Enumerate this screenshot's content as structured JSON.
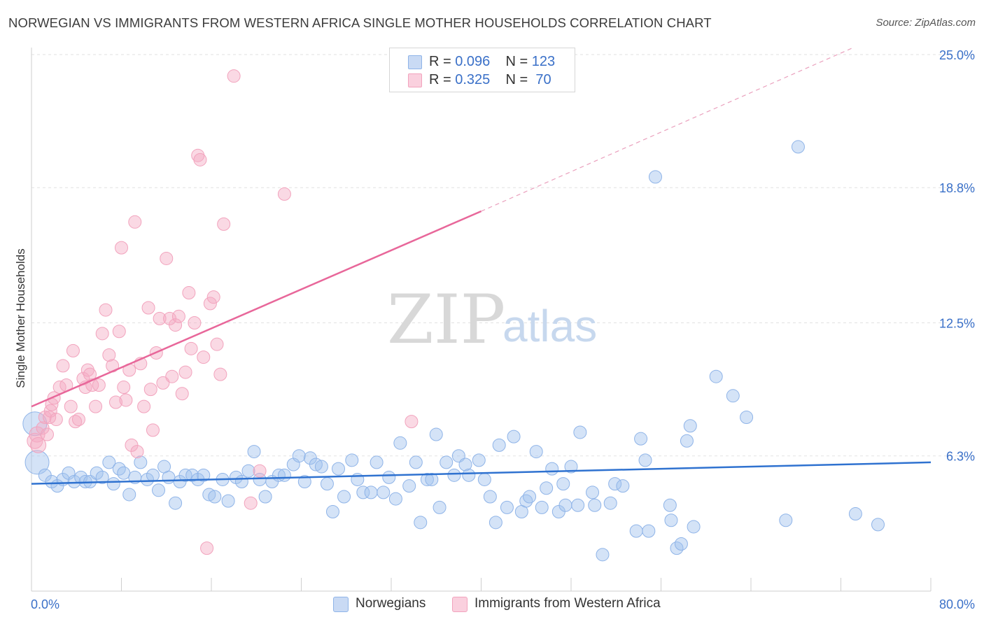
{
  "title": "NORWEGIAN VS IMMIGRANTS FROM WESTERN AFRICA SINGLE MOTHER HOUSEHOLDS CORRELATION CHART",
  "source": "Source: ZipAtlas.com",
  "watermark": {
    "zip": "ZIP",
    "atlas": "atlas"
  },
  "legend": {
    "rows": [
      {
        "r_label": "R =",
        "r_value": "0.096",
        "n_label": "N =",
        "n_value": "123"
      },
      {
        "r_label": "R =",
        "r_value": "0.325",
        "n_label": "N =",
        "n_value": "70"
      }
    ]
  },
  "chart_data": {
    "type": "scatter",
    "title": "NORWEGIAN VS IMMIGRANTS FROM WESTERN AFRICA SINGLE MOTHER HOUSEHOLDS CORRELATION CHART",
    "xlabel": "",
    "ylabel": "Single Mother Households",
    "xlim": [
      0,
      80
    ],
    "ylim": [
      0,
      25.0
    ],
    "x_tick_labels": [
      "0.0%",
      "80.0%"
    ],
    "y_tick_labels": [
      "6.3%",
      "12.5%",
      "18.8%",
      "25.0%"
    ],
    "y_ticks": [
      6.3,
      12.5,
      18.8,
      25.0
    ],
    "grid": true,
    "legend_position": "bottom",
    "colors": {
      "norwegians": "#8fb4e8",
      "norwegians_line": "#2f72d0",
      "immigrants": "#f2a3bd",
      "immigrants_line": "#e8679a",
      "axis_text": "#3a70c8"
    },
    "series": [
      {
        "name": "Norwegians",
        "R": 0.096,
        "N": 123,
        "trend": {
          "x": [
            0,
            80
          ],
          "y": [
            5.0,
            6.0
          ]
        },
        "points": [
          [
            0.3,
            7.8
          ],
          [
            0.5,
            6.0
          ],
          [
            1.2,
            5.4
          ],
          [
            1.8,
            5.1
          ],
          [
            2.3,
            4.9
          ],
          [
            2.8,
            5.2
          ],
          [
            3.3,
            5.5
          ],
          [
            3.8,
            5.1
          ],
          [
            4.4,
            5.3
          ],
          [
            4.8,
            5.1
          ],
          [
            5.2,
            5.1
          ],
          [
            5.8,
            5.5
          ],
          [
            6.3,
            5.3
          ],
          [
            6.9,
            6.0
          ],
          [
            7.3,
            5.0
          ],
          [
            7.8,
            5.7
          ],
          [
            8.2,
            5.5
          ],
          [
            8.7,
            4.5
          ],
          [
            9.2,
            5.3
          ],
          [
            9.7,
            6.0
          ],
          [
            10.3,
            5.2
          ],
          [
            10.8,
            5.4
          ],
          [
            11.3,
            4.7
          ],
          [
            11.8,
            5.8
          ],
          [
            12.2,
            5.3
          ],
          [
            12.8,
            4.1
          ],
          [
            13.2,
            5.1
          ],
          [
            13.7,
            5.4
          ],
          [
            14.3,
            5.4
          ],
          [
            14.8,
            5.2
          ],
          [
            15.3,
            5.4
          ],
          [
            15.8,
            4.5
          ],
          [
            16.3,
            4.4
          ],
          [
            17.0,
            5.2
          ],
          [
            17.5,
            4.2
          ],
          [
            18.2,
            5.3
          ],
          [
            18.7,
            5.1
          ],
          [
            19.3,
            5.6
          ],
          [
            19.8,
            6.5
          ],
          [
            20.3,
            5.2
          ],
          [
            20.8,
            4.4
          ],
          [
            21.4,
            5.1
          ],
          [
            22.0,
            5.4
          ],
          [
            22.5,
            5.4
          ],
          [
            23.3,
            5.9
          ],
          [
            23.8,
            6.3
          ],
          [
            24.3,
            5.1
          ],
          [
            24.8,
            6.2
          ],
          [
            25.3,
            5.9
          ],
          [
            25.8,
            5.8
          ],
          [
            26.3,
            5.0
          ],
          [
            26.8,
            3.7
          ],
          [
            27.3,
            5.7
          ],
          [
            27.8,
            4.4
          ],
          [
            28.5,
            6.1
          ],
          [
            29.0,
            5.2
          ],
          [
            29.5,
            4.6
          ],
          [
            30.2,
            4.6
          ],
          [
            30.7,
            6.0
          ],
          [
            31.3,
            4.6
          ],
          [
            31.8,
            5.3
          ],
          [
            32.4,
            4.3
          ],
          [
            32.8,
            6.9
          ],
          [
            33.6,
            4.9
          ],
          [
            34.2,
            6.0
          ],
          [
            34.6,
            3.2
          ],
          [
            35.2,
            5.2
          ],
          [
            35.6,
            5.2
          ],
          [
            36.0,
            7.3
          ],
          [
            36.3,
            3.9
          ],
          [
            36.9,
            6.0
          ],
          [
            37.6,
            5.4
          ],
          [
            38.0,
            6.3
          ],
          [
            38.6,
            5.9
          ],
          [
            38.9,
            5.4
          ],
          [
            39.8,
            6.1
          ],
          [
            40.3,
            5.2
          ],
          [
            40.8,
            4.4
          ],
          [
            41.3,
            3.2
          ],
          [
            41.6,
            6.8
          ],
          [
            42.3,
            3.9
          ],
          [
            42.9,
            7.2
          ],
          [
            43.6,
            3.7
          ],
          [
            44.0,
            4.2
          ],
          [
            44.3,
            4.4
          ],
          [
            44.9,
            6.5
          ],
          [
            45.4,
            3.9
          ],
          [
            45.8,
            4.8
          ],
          [
            46.3,
            5.7
          ],
          [
            46.9,
            3.7
          ],
          [
            47.3,
            5.0
          ],
          [
            47.5,
            4.0
          ],
          [
            48.0,
            5.8
          ],
          [
            48.6,
            4.0
          ],
          [
            48.8,
            7.4
          ],
          [
            49.9,
            4.6
          ],
          [
            50.1,
            4.0
          ],
          [
            50.8,
            1.7
          ],
          [
            51.5,
            4.1
          ],
          [
            51.9,
            5.0
          ],
          [
            52.6,
            4.9
          ],
          [
            53.8,
            2.8
          ],
          [
            54.2,
            7.1
          ],
          [
            54.6,
            6.1
          ],
          [
            54.9,
            2.8
          ],
          [
            55.5,
            19.3
          ],
          [
            56.8,
            4.0
          ],
          [
            56.9,
            3.3
          ],
          [
            57.4,
            2.0
          ],
          [
            57.8,
            2.2
          ],
          [
            58.3,
            7.0
          ],
          [
            58.6,
            7.7
          ],
          [
            58.9,
            3.0
          ],
          [
            60.9,
            10.0
          ],
          [
            62.4,
            9.1
          ],
          [
            63.6,
            8.1
          ],
          [
            67.1,
            3.3
          ],
          [
            68.2,
            20.7
          ],
          [
            73.3,
            3.6
          ],
          [
            75.3,
            3.1
          ]
        ]
      },
      {
        "name": "Immigrants from Western Africa",
        "R": 0.325,
        "N": 70,
        "trend": {
          "x": [
            0,
            40
          ],
          "y": [
            8.6,
            17.7
          ]
        },
        "trend_extension": {
          "x": [
            40,
            73
          ],
          "y": [
            17.7,
            25.3
          ]
        },
        "points": [
          [
            0.3,
            7.0
          ],
          [
            0.5,
            7.3
          ],
          [
            0.6,
            6.8
          ],
          [
            1.0,
            7.6
          ],
          [
            1.2,
            8.1
          ],
          [
            1.4,
            7.3
          ],
          [
            1.6,
            8.1
          ],
          [
            1.7,
            8.4
          ],
          [
            1.8,
            8.7
          ],
          [
            2.0,
            9.0
          ],
          [
            2.2,
            8.0
          ],
          [
            2.5,
            9.5
          ],
          [
            2.8,
            10.5
          ],
          [
            3.1,
            9.6
          ],
          [
            3.5,
            8.6
          ],
          [
            3.7,
            11.2
          ],
          [
            3.9,
            7.9
          ],
          [
            4.2,
            8.0
          ],
          [
            4.6,
            9.9
          ],
          [
            4.8,
            9.5
          ],
          [
            5.0,
            10.3
          ],
          [
            5.2,
            10.1
          ],
          [
            5.4,
            9.6
          ],
          [
            5.7,
            8.6
          ],
          [
            6.0,
            9.6
          ],
          [
            6.3,
            12.0
          ],
          [
            6.6,
            13.1
          ],
          [
            6.9,
            11.0
          ],
          [
            7.2,
            10.5
          ],
          [
            7.5,
            8.8
          ],
          [
            7.8,
            12.1
          ],
          [
            8.0,
            16.0
          ],
          [
            8.2,
            9.5
          ],
          [
            8.4,
            8.9
          ],
          [
            8.7,
            10.3
          ],
          [
            8.9,
            6.8
          ],
          [
            9.2,
            17.2
          ],
          [
            9.4,
            6.5
          ],
          [
            9.7,
            10.6
          ],
          [
            10.0,
            8.6
          ],
          [
            10.4,
            13.2
          ],
          [
            10.6,
            9.4
          ],
          [
            10.8,
            7.5
          ],
          [
            11.1,
            11.1
          ],
          [
            11.4,
            12.7
          ],
          [
            11.7,
            9.7
          ],
          [
            12.0,
            15.5
          ],
          [
            12.3,
            12.7
          ],
          [
            12.5,
            10.0
          ],
          [
            12.8,
            12.4
          ],
          [
            13.1,
            12.8
          ],
          [
            13.4,
            9.2
          ],
          [
            13.7,
            10.2
          ],
          [
            14.0,
            13.9
          ],
          [
            14.2,
            11.3
          ],
          [
            14.5,
            12.5
          ],
          [
            14.8,
            20.3
          ],
          [
            15.0,
            20.1
          ],
          [
            15.3,
            10.9
          ],
          [
            15.6,
            2.0
          ],
          [
            15.9,
            13.4
          ],
          [
            16.2,
            13.7
          ],
          [
            16.5,
            11.5
          ],
          [
            16.8,
            10.1
          ],
          [
            17.1,
            17.1
          ],
          [
            18.0,
            24.0
          ],
          [
            19.5,
            4.1
          ],
          [
            20.3,
            5.6
          ],
          [
            22.5,
            18.5
          ],
          [
            33.8,
            7.9
          ]
        ]
      }
    ]
  },
  "bottom_legend": [
    {
      "label": "Norwegians"
    },
    {
      "label": "Immigrants from Western Africa"
    }
  ]
}
